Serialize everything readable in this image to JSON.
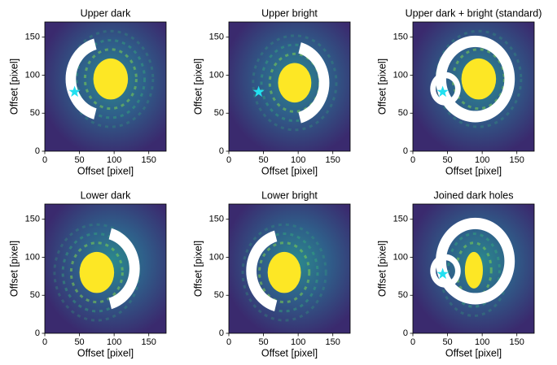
{
  "chart_data": [
    {
      "type": "image",
      "title": "Upper dark",
      "xlabel": "Offset [pixel]",
      "ylabel": "Offset [pixel]",
      "xlim": [
        0,
        175
      ],
      "ylim": [
        0,
        170
      ],
      "xticks": [
        0,
        50,
        100,
        150
      ],
      "yticks": [
        0,
        50,
        100,
        150
      ],
      "points": {
        "x": [
          43
        ],
        "y": [
          78
        ],
        "color": "#22e0f0"
      }
    },
    {
      "type": "image",
      "title": "Upper bright",
      "xlabel": "Offset [pixel]",
      "ylabel": "Offset [pixel]",
      "xlim": [
        0,
        175
      ],
      "ylim": [
        0,
        170
      ],
      "xticks": [
        0,
        50,
        100,
        150
      ],
      "yticks": [
        0,
        50,
        100,
        150
      ],
      "points": {
        "x": [
          43
        ],
        "y": [
          78
        ],
        "color": "#22e0f0"
      }
    },
    {
      "type": "image",
      "title": "Upper dark + bright (standard)",
      "xlabel": "Offset [pixel]",
      "ylabel": "Offset [pixel]",
      "xlim": [
        0,
        175
      ],
      "ylim": [
        0,
        170
      ],
      "xticks": [
        0,
        50,
        100,
        150
      ],
      "yticks": [
        0,
        50,
        100,
        150
      ],
      "points": {
        "x": [
          43
        ],
        "y": [
          78
        ],
        "color": "#22e0f0"
      }
    },
    {
      "type": "image",
      "title": "Lower dark",
      "xlabel": "Offset [pixel]",
      "ylabel": "Offset [pixel]",
      "xlim": [
        0,
        175
      ],
      "ylim": [
        0,
        170
      ],
      "xticks": [
        0,
        50,
        100,
        150
      ],
      "yticks": [
        0,
        50,
        100,
        150
      ]
    },
    {
      "type": "image",
      "title": "Lower bright",
      "xlabel": "Offset [pixel]",
      "ylabel": "Offset [pixel]",
      "xlim": [
        0,
        175
      ],
      "ylim": [
        0,
        170
      ],
      "xticks": [
        0,
        50,
        100,
        150
      ],
      "yticks": [
        0,
        50,
        100,
        150
      ]
    },
    {
      "type": "image",
      "title": "Joined dark holes",
      "xlabel": "Offset [pixel]",
      "ylabel": "Offset [pixel]",
      "xlim": [
        0,
        175
      ],
      "ylim": [
        0,
        170
      ],
      "xticks": [
        0,
        50,
        100,
        150
      ],
      "yticks": [
        0,
        50,
        100,
        150
      ],
      "points": {
        "x": [
          43
        ],
        "y": [
          78
        ],
        "color": "#22e0f0"
      }
    }
  ]
}
